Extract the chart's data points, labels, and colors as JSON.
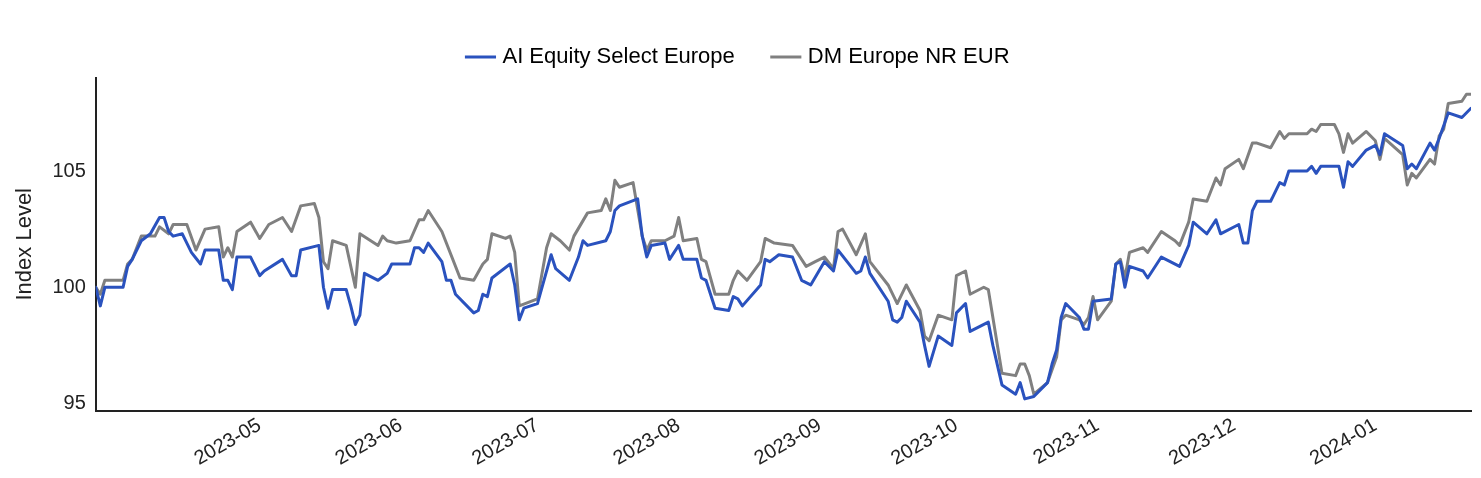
{
  "chart_data": {
    "type": "line",
    "ylabel": "Index Level",
    "legend": "top",
    "xlim": [
      "2023-03-26",
      "2024-01-22"
    ],
    "ylim": [
      94.7,
      109
    ],
    "xticks": [
      "2023-05",
      "2023-06",
      "2023-07",
      "2023-08",
      "2023-09",
      "2023-10",
      "2023-11",
      "2023-12",
      "2024-01"
    ],
    "yticks": [
      95,
      100,
      105
    ],
    "series": [
      {
        "name": "AI Equity Select Europe",
        "color": "#2a52be",
        "x": [
          "2023-03-26",
          "2023-03-27",
          "2023-03-28",
          "2023-04-01",
          "2023-04-02",
          "2023-04-03",
          "2023-04-05",
          "2023-04-07",
          "2023-04-09",
          "2023-04-10",
          "2023-04-11",
          "2023-04-12",
          "2023-04-14",
          "2023-04-16",
          "2023-04-18",
          "2023-04-19",
          "2023-04-22",
          "2023-04-23",
          "2023-04-24",
          "2023-04-25",
          "2023-04-26",
          "2023-04-29",
          "2023-05-01",
          "2023-05-02",
          "2023-05-06",
          "2023-05-08",
          "2023-05-09",
          "2023-05-10",
          "2023-05-14",
          "2023-05-15",
          "2023-05-16",
          "2023-05-17",
          "2023-05-20",
          "2023-05-21",
          "2023-05-22",
          "2023-05-23",
          "2023-05-24",
          "2023-05-27",
          "2023-05-29",
          "2023-05-30",
          "2023-06-03",
          "2023-06-04",
          "2023-06-05",
          "2023-06-06",
          "2023-06-07",
          "2023-06-10",
          "2023-06-11",
          "2023-06-12",
          "2023-06-13",
          "2023-06-17",
          "2023-06-18",
          "2023-06-19",
          "2023-06-20",
          "2023-06-21",
          "2023-06-25",
          "2023-06-26",
          "2023-06-27",
          "2023-06-28",
          "2023-07-01",
          "2023-07-04",
          "2023-07-05",
          "2023-07-08",
          "2023-07-10",
          "2023-07-11",
          "2023-07-12",
          "2023-07-16",
          "2023-07-17",
          "2023-07-18",
          "2023-07-19",
          "2023-07-23",
          "2023-07-24",
          "2023-07-25",
          "2023-07-26",
          "2023-07-29",
          "2023-07-30",
          "2023-08-01",
          "2023-08-02",
          "2023-08-05",
          "2023-08-06",
          "2023-08-07",
          "2023-08-09",
          "2023-08-12",
          "2023-08-13",
          "2023-08-14",
          "2023-08-15",
          "2023-08-19",
          "2023-08-20",
          "2023-08-21",
          "2023-08-23",
          "2023-08-26",
          "2023-08-28",
          "2023-08-30",
          "2023-09-02",
          "2023-09-04",
          "2023-09-05",
          "2023-09-09",
          "2023-09-10",
          "2023-09-11",
          "2023-09-12",
          "2023-09-16",
          "2023-09-17",
          "2023-09-18",
          "2023-09-19",
          "2023-09-20",
          "2023-09-23",
          "2023-09-24",
          "2023-09-25",
          "2023-09-27",
          "2023-09-30",
          "2023-10-01",
          "2023-10-03",
          "2023-10-04",
          "2023-10-08",
          "2023-10-09",
          "2023-10-11",
          "2023-10-14",
          "2023-10-15",
          "2023-10-16",
          "2023-10-18",
          "2023-10-21",
          "2023-10-22",
          "2023-10-23",
          "2023-10-24",
          "2023-10-25",
          "2023-10-28",
          "2023-10-29",
          "2023-10-30",
          "2023-10-31",
          "2023-11-04",
          "2023-11-05",
          "2023-11-06",
          "2023-11-07",
          "2023-11-08",
          "2023-11-11",
          "2023-11-12",
          "2023-11-15",
          "2023-11-19",
          "2023-11-21",
          "2023-11-22",
          "2023-11-25",
          "2023-11-27",
          "2023-11-28",
          "2023-12-02",
          "2023-12-03",
          "2023-12-04",
          "2023-12-05",
          "2023-12-06",
          "2023-12-09",
          "2023-12-11",
          "2023-12-12",
          "2023-12-13",
          "2023-12-17",
          "2023-12-18",
          "2023-12-19",
          "2023-12-20",
          "2023-12-24",
          "2023-12-25",
          "2023-12-26",
          "2023-12-27",
          "2023-12-30",
          "2024-01-01",
          "2024-01-02",
          "2024-01-03",
          "2024-01-07",
          "2024-01-08",
          "2024-01-09",
          "2024-01-10",
          "2024-01-13",
          "2024-01-14",
          "2024-01-15",
          "2024-01-17",
          "2024-01-20",
          "2024-01-22"
        ],
        "values": [
          100.0,
          99.2,
          100.0,
          100.0,
          100.9,
          101.2,
          102.0,
          102.3,
          103.0,
          103.0,
          102.4,
          102.2,
          102.3,
          101.5,
          101.0,
          101.6,
          101.6,
          100.3,
          100.3,
          99.9,
          101.3,
          101.3,
          100.5,
          100.7,
          101.2,
          100.5,
          100.5,
          101.6,
          101.8,
          100.0,
          99.1,
          99.9,
          99.9,
          99.2,
          98.4,
          98.8,
          100.6,
          100.3,
          100.6,
          101.0,
          101.0,
          101.7,
          101.7,
          101.5,
          101.9,
          101.1,
          100.3,
          100.3,
          99.7,
          98.9,
          99.0,
          99.7,
          99.6,
          100.4,
          101.0,
          100.1,
          98.6,
          99.1,
          99.3,
          101.4,
          100.8,
          100.3,
          101.3,
          102.0,
          101.8,
          102.0,
          102.4,
          103.3,
          103.5,
          103.8,
          102.2,
          101.3,
          101.8,
          101.9,
          101.2,
          101.8,
          101.2,
          101.2,
          100.4,
          100.3,
          99.1,
          99.0,
          99.6,
          99.5,
          99.2,
          100.1,
          101.2,
          101.1,
          101.4,
          101.3,
          100.3,
          100.1,
          101.1,
          100.7,
          101.6,
          100.6,
          100.7,
          101.3,
          100.6,
          99.4,
          98.6,
          98.5,
          98.7,
          99.4,
          98.5,
          97.5,
          96.6,
          97.9,
          97.5,
          98.9,
          99.3,
          98.1,
          98.5,
          97.5,
          95.8,
          95.4,
          95.9,
          95.2,
          95.3,
          95.9,
          96.7,
          97.3,
          98.7,
          99.3,
          98.7,
          98.2,
          98.2,
          99.4,
          99.5,
          101.0,
          101.1,
          100.0,
          100.9,
          100.7,
          100.4,
          101.3,
          100.9,
          101.8,
          102.8,
          102.3,
          102.9,
          102.3,
          102.7,
          101.9,
          101.9,
          103.3,
          103.7,
          103.7,
          104.5,
          104.4,
          105.0,
          105.0,
          105.2,
          104.9,
          105.2,
          105.2,
          104.3,
          105.4,
          105.2,
          105.9,
          106.1,
          105.7,
          106.6,
          106.1,
          105.1,
          105.3,
          105.1,
          106.2,
          105.9,
          106.4,
          107.5,
          107.3,
          107.7
        ]
      },
      {
        "name": "DM Europe NR EUR",
        "color": "#808080",
        "x": [
          "2023-03-26",
          "2023-03-27",
          "2023-03-28",
          "2023-04-01",
          "2023-04-02",
          "2023-04-03",
          "2023-04-05",
          "2023-04-08",
          "2023-04-09",
          "2023-04-11",
          "2023-04-12",
          "2023-04-15",
          "2023-04-17",
          "2023-04-19",
          "2023-04-22",
          "2023-04-23",
          "2023-04-24",
          "2023-04-25",
          "2023-04-26",
          "2023-04-29",
          "2023-05-01",
          "2023-05-03",
          "2023-05-06",
          "2023-05-08",
          "2023-05-10",
          "2023-05-13",
          "2023-05-14",
          "2023-05-15",
          "2023-05-16",
          "2023-05-17",
          "2023-05-20",
          "2023-05-22",
          "2023-05-23",
          "2023-05-27",
          "2023-05-28",
          "2023-05-29",
          "2023-05-31",
          "2023-06-03",
          "2023-06-05",
          "2023-06-06",
          "2023-06-07",
          "2023-06-10",
          "2023-06-14",
          "2023-06-17",
          "2023-06-19",
          "2023-06-20",
          "2023-06-21",
          "2023-06-24",
          "2023-06-25",
          "2023-06-26",
          "2023-06-27",
          "2023-07-01",
          "2023-07-03",
          "2023-07-04",
          "2023-07-06",
          "2023-07-08",
          "2023-07-09",
          "2023-07-12",
          "2023-07-15",
          "2023-07-16",
          "2023-07-17",
          "2023-07-18",
          "2023-07-19",
          "2023-07-22",
          "2023-07-24",
          "2023-07-25",
          "2023-07-26",
          "2023-07-29",
          "2023-07-31",
          "2023-08-01",
          "2023-08-02",
          "2023-08-05",
          "2023-08-06",
          "2023-08-07",
          "2023-08-09",
          "2023-08-12",
          "2023-08-13",
          "2023-08-14",
          "2023-08-16",
          "2023-08-19",
          "2023-08-20",
          "2023-08-22",
          "2023-08-26",
          "2023-08-29",
          "2023-08-31",
          "2023-09-02",
          "2023-09-04",
          "2023-09-05",
          "2023-09-06",
          "2023-09-09",
          "2023-09-11",
          "2023-09-12",
          "2023-09-16",
          "2023-09-18",
          "2023-09-20",
          "2023-09-23",
          "2023-09-24",
          "2023-09-25",
          "2023-09-27",
          "2023-09-30",
          "2023-10-01",
          "2023-10-03",
          "2023-10-04",
          "2023-10-07",
          "2023-10-08",
          "2023-10-11",
          "2023-10-14",
          "2023-10-15",
          "2023-10-16",
          "2023-10-17",
          "2023-10-18",
          "2023-10-21",
          "2023-10-23",
          "2023-10-24",
          "2023-10-25",
          "2023-10-28",
          "2023-10-29",
          "2023-10-30",
          "2023-10-31",
          "2023-11-01",
          "2023-11-04",
          "2023-11-05",
          "2023-11-06",
          "2023-11-07",
          "2023-11-08",
          "2023-11-11",
          "2023-11-12",
          "2023-11-15",
          "2023-11-18",
          "2023-11-19",
          "2023-11-21",
          "2023-11-22",
          "2023-11-25",
          "2023-11-27",
          "2023-11-28",
          "2023-11-29",
          "2023-12-02",
          "2023-12-03",
          "2023-12-05",
          "2023-12-06",
          "2023-12-09",
          "2023-12-11",
          "2023-12-12",
          "2023-12-13",
          "2023-12-17",
          "2023-12-18",
          "2023-12-19",
          "2023-12-20",
          "2023-12-23",
          "2023-12-24",
          "2023-12-25",
          "2023-12-26",
          "2023-12-27",
          "2023-12-30",
          "2024-01-01",
          "2024-01-02",
          "2024-01-03",
          "2024-01-07",
          "2024-01-08",
          "2024-01-09",
          "2024-01-10",
          "2024-01-13",
          "2024-01-14",
          "2024-01-15",
          "2024-01-16",
          "2024-01-17",
          "2024-01-20",
          "2024-01-21",
          "2024-01-22"
        ],
        "values": [
          100.0,
          99.7,
          100.3,
          100.3,
          101.0,
          101.2,
          102.2,
          102.2,
          102.6,
          102.3,
          102.7,
          102.7,
          101.6,
          102.5,
          102.6,
          101.3,
          101.7,
          101.3,
          102.4,
          102.8,
          102.1,
          102.7,
          103.0,
          102.4,
          103.5,
          103.6,
          103.0,
          101.1,
          100.8,
          102.0,
          101.8,
          100.0,
          102.3,
          101.8,
          102.2,
          102.0,
          101.9,
          102.0,
          102.9,
          102.9,
          103.3,
          102.4,
          100.4,
          100.3,
          101.0,
          101.2,
          102.3,
          102.1,
          102.2,
          101.5,
          99.2,
          99.5,
          101.7,
          102.3,
          102.0,
          101.6,
          102.2,
          103.2,
          103.3,
          103.8,
          103.3,
          104.6,
          104.3,
          104.5,
          102.2,
          101.6,
          102.0,
          102.0,
          102.2,
          103.0,
          102.0,
          102.1,
          101.2,
          101.1,
          99.7,
          99.7,
          100.3,
          100.7,
          100.3,
          101.1,
          102.1,
          101.9,
          101.8,
          100.9,
          101.1,
          101.3,
          100.8,
          102.4,
          102.5,
          101.4,
          102.3,
          101.1,
          100.1,
          99.3,
          100.1,
          99.0,
          97.9,
          97.7,
          98.8,
          98.6,
          100.5,
          100.7,
          99.7,
          100.0,
          99.9,
          96.3,
          96.2,
          96.7,
          96.7,
          96.2,
          95.4,
          95.9,
          97.0,
          98.6,
          98.8,
          98.6,
          98.4,
          98.7,
          99.6,
          98.6,
          99.4,
          101.0,
          101.2,
          100.4,
          101.5,
          101.7,
          101.5,
          102.4,
          102.0,
          101.8,
          102.8,
          103.8,
          103.7,
          104.7,
          104.4,
          105.1,
          105.5,
          105.1,
          106.2,
          106.2,
          106.0,
          106.7,
          106.4,
          106.6,
          106.6,
          106.8,
          106.7,
          107.0,
          107.0,
          106.6,
          105.8,
          106.6,
          106.2,
          106.7,
          106.3,
          105.5,
          106.4,
          105.7,
          104.4,
          104.9,
          104.7,
          105.5,
          105.3,
          106.5,
          106.8,
          107.9,
          108.0,
          108.3,
          108.3
        ]
      }
    ]
  }
}
